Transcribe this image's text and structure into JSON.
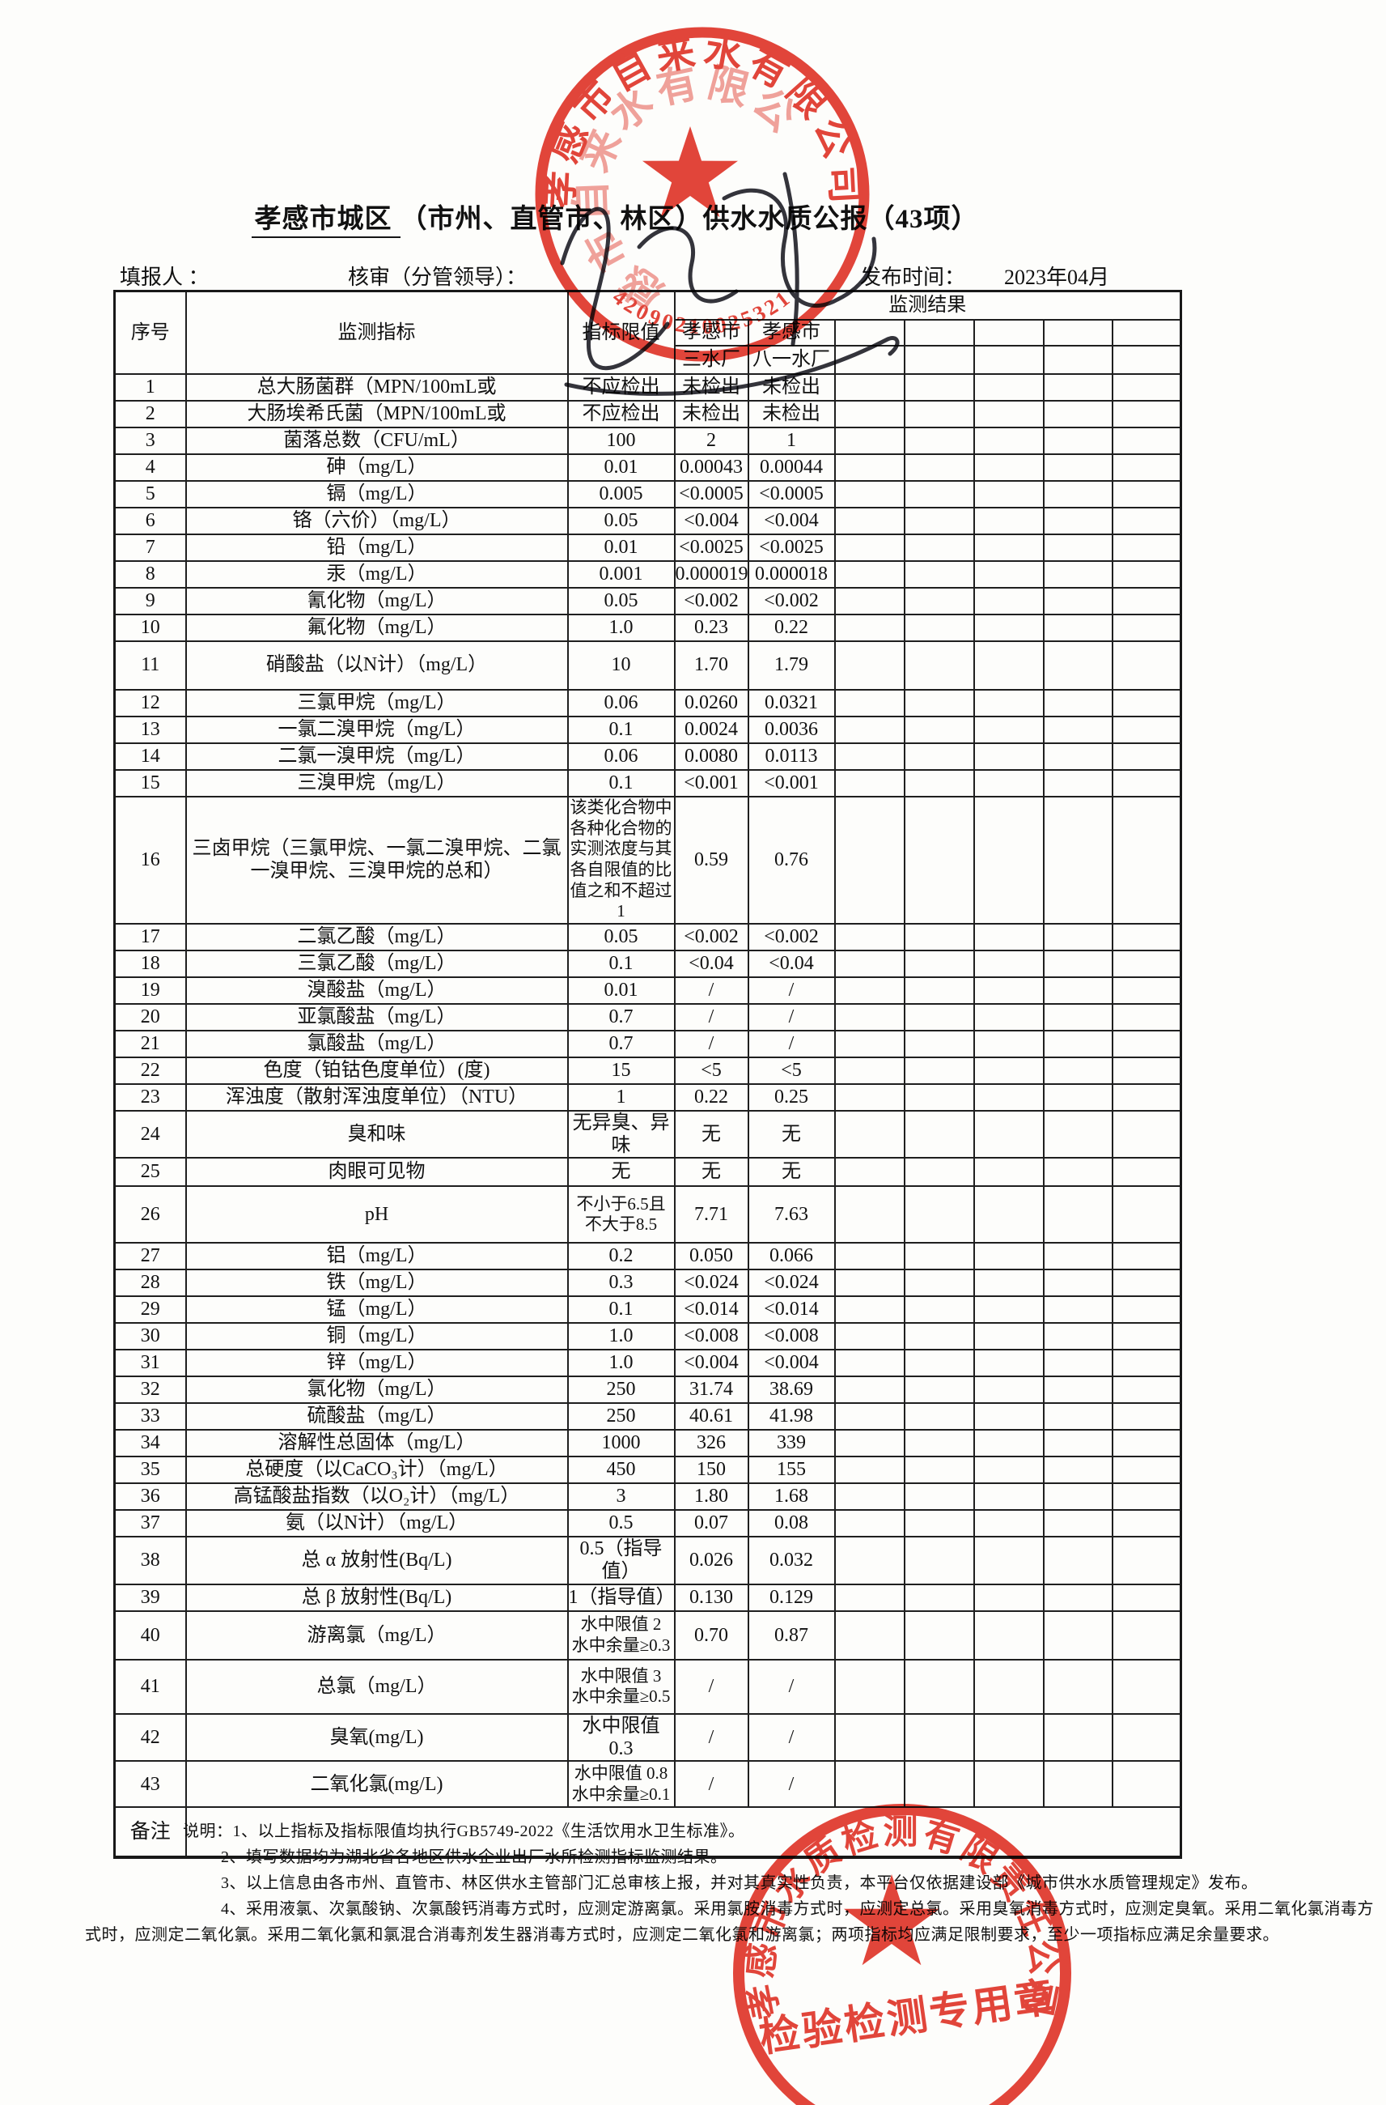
{
  "title": {
    "underlined": "孝感市城区",
    "rest": "（市州、直管市、林区）供水水质公报（43项）"
  },
  "meta": {
    "filler_label": "填报人 ：",
    "reviewer_label": "核审（分管领导）：",
    "publish_label": "发布时间：",
    "publish_value": "2023年04月"
  },
  "table": {
    "header": {
      "col_no": "序号",
      "col_indicator": "监测指标",
      "col_limit": "指标限值",
      "col_result": "监测结果",
      "city1": "孝感市",
      "city2": "孝感市",
      "plant1": "三水厂",
      "plant2": "八一水厂"
    },
    "remark_label": "备注",
    "rows": [
      {
        "n": "1",
        "ind": "总大肠菌群（MPN/100mL或",
        "lim": "不应检出",
        "a": "未检出",
        "b": "未检出"
      },
      {
        "n": "2",
        "ind": "大肠埃希氏菌（MPN/100mL或",
        "lim": "不应检出",
        "a": "未检出",
        "b": "未检出"
      },
      {
        "n": "3",
        "ind": "菌落总数（CFU/mL）",
        "lim": "100",
        "a": "2",
        "b": "1"
      },
      {
        "n": "4",
        "ind": "砷（mg/L）",
        "lim": "0.01",
        "a": "0.00043",
        "b": "0.00044"
      },
      {
        "n": "5",
        "ind": "镉（mg/L）",
        "lim": "0.005",
        "a": "<0.0005",
        "b": "<0.0005"
      },
      {
        "n": "6",
        "ind": "铬（六价）（mg/L）",
        "lim": "0.05",
        "a": "<0.004",
        "b": "<0.004"
      },
      {
        "n": "7",
        "ind": "铅（mg/L）",
        "lim": "0.01",
        "a": "<0.0025",
        "b": "<0.0025"
      },
      {
        "n": "8",
        "ind": "汞（mg/L）",
        "lim": "0.001",
        "a": "0.000019",
        "b": "0.000018"
      },
      {
        "n": "9",
        "ind": "氰化物（mg/L）",
        "lim": "0.05",
        "a": "<0.002",
        "b": "<0.002"
      },
      {
        "n": "10",
        "ind": "氟化物（mg/L）",
        "lim": "1.0",
        "a": "0.23",
        "b": "0.22"
      },
      {
        "n": "11",
        "ind": "硝酸盐（以N计）（mg/L）",
        "lim": "10",
        "a": "1.70",
        "b": "1.79"
      },
      {
        "n": "12",
        "ind": "三氯甲烷（mg/L）",
        "lim": "0.06",
        "a": "0.0260",
        "b": "0.0321"
      },
      {
        "n": "13",
        "ind": "一氯二溴甲烷（mg/L）",
        "lim": "0.1",
        "a": "0.0024",
        "b": "0.0036"
      },
      {
        "n": "14",
        "ind": "二氯一溴甲烷（mg/L）",
        "lim": "0.06",
        "a": "0.0080",
        "b": "0.0113"
      },
      {
        "n": "15",
        "ind": "三溴甲烷（mg/L）",
        "lim": "0.1",
        "a": "<0.001",
        "b": "<0.001"
      },
      {
        "n": "16",
        "ind": "三卤甲烷（三氯甲烷、一氯二溴甲烷、二氯一溴甲烷、三溴甲烷的总和）",
        "lim": "该类化合物中各种化合物的实测浓度与其各自限值的比值之和不超过1",
        "a": "0.59",
        "b": "0.76"
      },
      {
        "n": "17",
        "ind": "二氯乙酸（mg/L）",
        "lim": "0.05",
        "a": "<0.002",
        "b": "<0.002"
      },
      {
        "n": "18",
        "ind": "三氯乙酸（mg/L）",
        "lim": "0.1",
        "a": "<0.04",
        "b": "<0.04"
      },
      {
        "n": "19",
        "ind": "溴酸盐（mg/L）",
        "lim": "0.01",
        "a": "/",
        "b": "/"
      },
      {
        "n": "20",
        "ind": "亚氯酸盐（mg/L）",
        "lim": "0.7",
        "a": "/",
        "b": "/"
      },
      {
        "n": "21",
        "ind": "氯酸盐（mg/L）",
        "lim": "0.7",
        "a": "/",
        "b": "/"
      },
      {
        "n": "22",
        "ind": "色度（铂钴色度单位）(度)",
        "lim": "15",
        "a": "<5",
        "b": "<5"
      },
      {
        "n": "23",
        "ind": "浑浊度（散射浑浊度单位）（NTU）",
        "lim": "1",
        "a": "0.22",
        "b": "0.25"
      },
      {
        "n": "24",
        "ind": "臭和味",
        "lim": "无异臭、异味",
        "a": "无",
        "b": "无"
      },
      {
        "n": "25",
        "ind": "肉眼可见物",
        "lim": "无",
        "a": "无",
        "b": "无"
      },
      {
        "n": "26",
        "ind": "pH",
        "lim": "不小于6.5且不大于8.5",
        "a": "7.71",
        "b": "7.63"
      },
      {
        "n": "27",
        "ind": "铝（mg/L）",
        "lim": "0.2",
        "a": "0.050",
        "b": "0.066"
      },
      {
        "n": "28",
        "ind": "铁（mg/L）",
        "lim": "0.3",
        "a": "<0.024",
        "b": "<0.024"
      },
      {
        "n": "29",
        "ind": "锰（mg/L）",
        "lim": "0.1",
        "a": "<0.014",
        "b": "<0.014"
      },
      {
        "n": "30",
        "ind": "铜（mg/L）",
        "lim": "1.0",
        "a": "<0.008",
        "b": "<0.008"
      },
      {
        "n": "31",
        "ind": "锌（mg/L）",
        "lim": "1.0",
        "a": "<0.004",
        "b": "<0.004"
      },
      {
        "n": "32",
        "ind": "氯化物（mg/L）",
        "lim": "250",
        "a": "31.74",
        "b": "38.69"
      },
      {
        "n": "33",
        "ind": "硫酸盐（mg/L）",
        "lim": "250",
        "a": "40.61",
        "b": "41.98"
      },
      {
        "n": "34",
        "ind": "溶解性总固体（mg/L）",
        "lim": "1000",
        "a": "326",
        "b": "339"
      },
      {
        "n": "35",
        "ind": "总硬度（以CaCO₃计）（mg/L）",
        "lim": "450",
        "a": "150",
        "b": "155"
      },
      {
        "n": "36",
        "ind": "高锰酸盐指数（以O₂计）（mg/L）",
        "lim": "3",
        "a": "1.80",
        "b": "1.68"
      },
      {
        "n": "37",
        "ind": "氨（以N计）（mg/L）",
        "lim": "0.5",
        "a": "0.07",
        "b": "0.08"
      },
      {
        "n": "38",
        "ind": "总 α 放射性(Bq/L)",
        "lim": "0.5（指导值）",
        "a": "0.026",
        "b": "0.032"
      },
      {
        "n": "39",
        "ind": "总 β 放射性(Bq/L)",
        "lim": "1（指导值）",
        "a": "0.130",
        "b": "0.129"
      },
      {
        "n": "40",
        "ind": "游离氯（mg/L）",
        "lim": "水中限值 2\n水中余量≥0.3",
        "a": "0.70",
        "b": "0.87"
      },
      {
        "n": "41",
        "ind": "总氯（mg/L）",
        "lim": "水中限值 3\n水中余量≥0.5",
        "a": "/",
        "b": "/"
      },
      {
        "n": "42",
        "ind": "臭氧(mg/L)",
        "lim": "水中限值 0.3",
        "a": "/",
        "b": "/"
      },
      {
        "n": "43",
        "ind": "二氧化氯(mg/L)",
        "lim": "水中限值 0.8\n水中余量≥0.1",
        "a": "/",
        "b": "/"
      }
    ]
  },
  "notes": {
    "lines": [
      "说明：1、以上指标及指标限值均执行GB5749-2022《生活饮用水卫生标准》。",
      "2、填写数据均为湖北省各地区供水企业出厂水所检测指标监测结果。",
      "3、以上信息由各市州、直管市、林区供水主管部门汇总审核上报，并对其真实性负责，本平台仅依据建设部《城市供水水质管理规定》发布。",
      "4、采用液氯、次氯酸钠、次氯酸钙消毒方式时，应测定游离氯。采用氯胺消毒方式时，应测定总氯。采用臭氧消毒方式时，应测定臭氧。采用二氧化氯消毒方",
      "式时，应测定二氧化氯。采用二氧化氯和氯混合消毒剂发生器消毒方式时，应测定二氧化氯和游离氯；两项指标均应满足限制要求，至少一项指标应满足余量要求。"
    ]
  },
  "stamps": {
    "company_seal": {
      "arc_text": "孝感市自来水有限公司",
      "number": "42090210025321",
      "color": "#df2b20"
    },
    "test_seal": {
      "arc_text": "孝感市水质检测有限责任公司",
      "banner": "检验检测专用章",
      "color": "#df2b20"
    }
  }
}
